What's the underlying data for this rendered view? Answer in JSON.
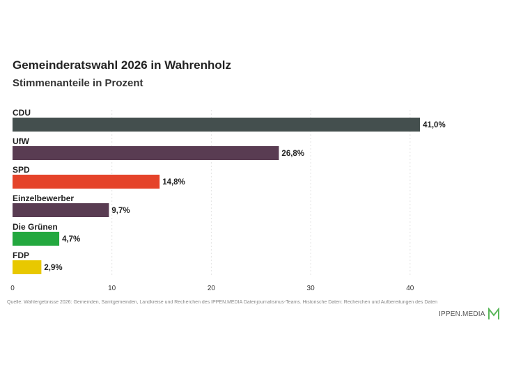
{
  "header": {
    "title": "Gemeinderatswahl 2026 in Wahrenholz",
    "subtitle": "Stimmenanteile in Prozent"
  },
  "footer": {
    "source": "Quelle: Wahlergebnisse 2026: Gemeinden, Samtgemeinden, Landkreise und Recherchen des IPPEN.MEDIA Datenjournalismus-Teams. Historische Daten: Recherchen und Aufbereitungen des Daten",
    "brand": "IPPEN.MEDIA",
    "brand_color": "#5cb85c"
  },
  "chart_data": {
    "type": "bar",
    "orientation": "horizontal",
    "title": "Gemeinderatswahl 2026 in Wahrenholz",
    "subtitle": "Stimmenanteile in Prozent",
    "categories": [
      "CDU",
      "UfW",
      "SPD",
      "Einzelbewerber",
      "Die Grünen",
      "FDP"
    ],
    "values": [
      41.0,
      26.8,
      14.8,
      9.7,
      4.7,
      2.9
    ],
    "value_labels": [
      "41,0%",
      "26,8%",
      "14,8%",
      "9,7%",
      "4,7%",
      "2,9%"
    ],
    "colors": [
      "#444f4e",
      "#593c52",
      "#e5432a",
      "#593c52",
      "#23a83f",
      "#e8c800"
    ],
    "xlim": [
      0,
      50
    ],
    "x_ticks": [
      0,
      10,
      20,
      30,
      40
    ],
    "grid": true
  }
}
